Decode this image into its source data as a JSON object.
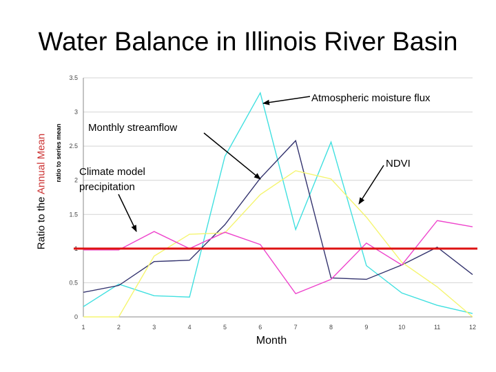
{
  "title": "Water Balance in Illinois River Basin",
  "chart_data": {
    "type": "line",
    "title": "Water Balance in Illinois River Basin",
    "xlabel": "Month",
    "ylabel_outer": {
      "prefix": "Ratio to the ",
      "accent": "Annual Mean"
    },
    "ylabel_inner": "ratio to series mean",
    "x": [
      1,
      2,
      3,
      4,
      5,
      6,
      7,
      8,
      9,
      10,
      11,
      12
    ],
    "xlim": [
      1,
      12
    ],
    "ylim": [
      0,
      3.5
    ],
    "yticks": [
      "0",
      "0.5",
      "1",
      "1.5",
      "2",
      "2.5",
      "3",
      "3.5"
    ],
    "grid": true,
    "reference_line": {
      "value": 1.0,
      "color": "#dd1111"
    },
    "series": [
      {
        "key": "atmospheric",
        "color": "#40e0e0",
        "values": [
          0.15,
          0.48,
          0.31,
          0.29,
          2.35,
          3.28,
          1.28,
          2.56,
          0.75,
          0.35,
          0.17,
          0.05
        ]
      },
      {
        "key": "streamflow",
        "color": "#33336e",
        "values": [
          0.36,
          0.46,
          0.81,
          0.83,
          1.35,
          2.03,
          2.58,
          0.57,
          0.55,
          0.76,
          1.02,
          0.62
        ]
      },
      {
        "key": "ndvi",
        "color": "#f5f570",
        "values": [
          0.0,
          0.0,
          0.89,
          1.21,
          1.23,
          1.79,
          2.14,
          2.02,
          1.46,
          0.8,
          0.44,
          0.0
        ]
      },
      {
        "key": "precipitation",
        "color": "#ee44cc",
        "values": [
          0.98,
          0.98,
          1.25,
          1.0,
          1.24,
          1.06,
          0.34,
          0.55,
          1.08,
          0.76,
          1.41,
          1.32
        ]
      }
    ],
    "annotations": [
      {
        "key": "atmospheric",
        "text": "Atmospheric moisture flux"
      },
      {
        "key": "streamflow",
        "text": "Monthly streamflow"
      },
      {
        "key": "ndvi",
        "text": "NDVI"
      },
      {
        "key": "precipitation",
        "lines": [
          "Climate model",
          "precipitation"
        ]
      }
    ]
  }
}
